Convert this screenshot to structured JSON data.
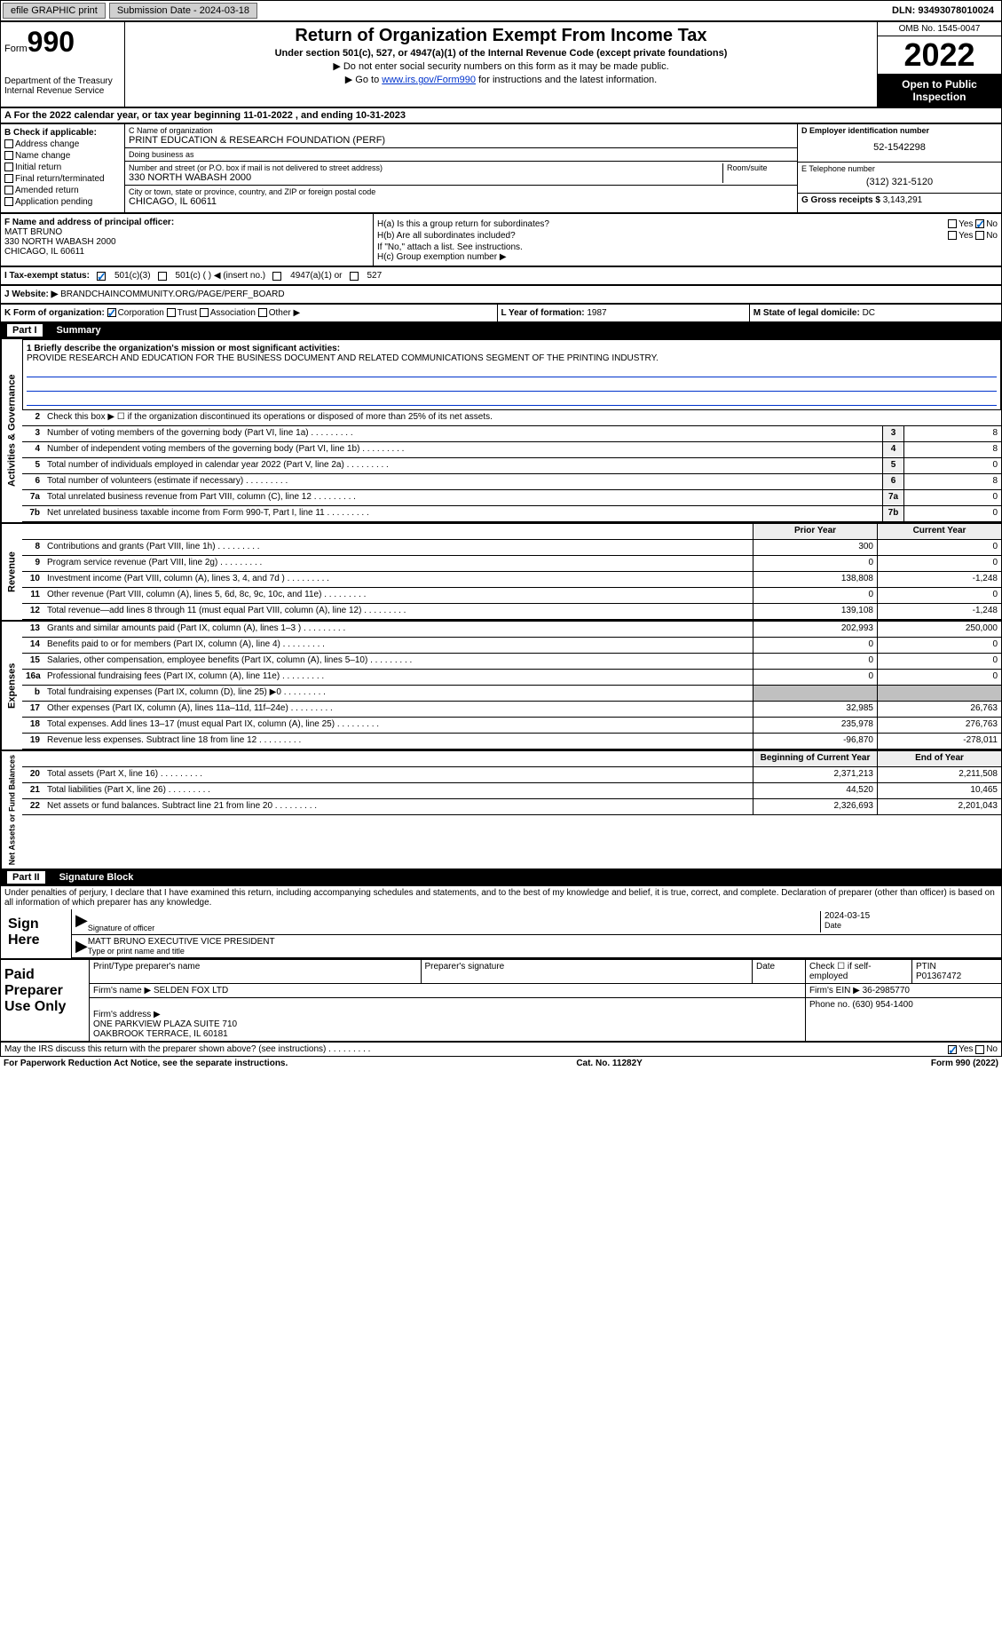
{
  "topbar": {
    "efile": "efile GRAPHIC print",
    "submission_label": "Submission Date - 2024-03-18",
    "dln": "DLN: 93493078010024"
  },
  "header": {
    "form_prefix": "Form",
    "form_number": "990",
    "dept": "Department of the Treasury\nInternal Revenue Service",
    "title": "Return of Organization Exempt From Income Tax",
    "subtitle": "Under section 501(c), 527, or 4947(a)(1) of the Internal Revenue Code (except private foundations)",
    "instr1": "▶ Do not enter social security numbers on this form as it may be made public.",
    "instr2_pre": "▶ Go to ",
    "instr2_link": "www.irs.gov/Form990",
    "instr2_post": " for instructions and the latest information.",
    "omb": "OMB No. 1545-0047",
    "year": "2022",
    "open": "Open to Public Inspection"
  },
  "lineA": "A For the 2022 calendar year, or tax year beginning 11-01-2022    , and ending 10-31-2023",
  "colB": {
    "header": "B Check if applicable:",
    "opts": [
      "Address change",
      "Name change",
      "Initial return",
      "Final return/terminated",
      "Amended return",
      "Application pending"
    ]
  },
  "colC": {
    "name_label": "C Name of organization",
    "name_val": "PRINT EDUCATION & RESEARCH FOUNDATION (PERF)",
    "dba_label": "Doing business as",
    "dba_val": "",
    "addr_label": "Number and street (or P.O. box if mail is not delivered to street address)",
    "room_label": "Room/suite",
    "addr_val": "330 NORTH WABASH 2000",
    "city_label": "City or town, state or province, country, and ZIP or foreign postal code",
    "city_val": "CHICAGO, IL  60611"
  },
  "colD": {
    "ein_label": "D Employer identification number",
    "ein_val": "52-1542298",
    "tel_label": "E Telephone number",
    "tel_val": "(312) 321-5120",
    "gross_label": "G Gross receipts $",
    "gross_val": "3,143,291"
  },
  "colF": {
    "label": "F Name and address of principal officer:",
    "name": "MATT BRUNO",
    "addr1": "330 NORTH WABASH 2000",
    "addr2": "CHICAGO, IL  60611"
  },
  "colH": {
    "ha": "H(a)  Is this a group return for subordinates?",
    "hb": "H(b)  Are all subordinates included?",
    "hb_note": "If \"No,\" attach a list. See instructions.",
    "hc": "H(c)  Group exemption number ▶",
    "yes": "Yes",
    "no": "No"
  },
  "rowI": {
    "label": "I   Tax-exempt status:",
    "opt1": "501(c)(3)",
    "opt2": "501(c) (   ) ◀ (insert no.)",
    "opt3": "4947(a)(1) or",
    "opt4": "527"
  },
  "rowJ": {
    "label": "J   Website: ▶",
    "val": "BRANDCHAINCOMMUNITY.ORG/PAGE/PERF_BOARD"
  },
  "rowK": {
    "label": "K Form of organization:",
    "corp": "Corporation",
    "trust": "Trust",
    "assoc": "Association",
    "other": "Other ▶",
    "L_label": "L Year of formation:",
    "L_val": "1987",
    "M_label": "M State of legal domicile:",
    "M_val": "DC"
  },
  "part1": {
    "part": "Part I",
    "title": "Summary",
    "line1_label": "1  Briefly describe the organization's mission or most significant activities:",
    "line1_val": "PROVIDE RESEARCH AND EDUCATION FOR THE BUSINESS DOCUMENT AND RELATED COMMUNICATIONS SEGMENT OF THE PRINTING INDUSTRY.",
    "line2": "Check this box ▶ ☐ if the organization discontinued its operations or disposed of more than 25% of its net assets.",
    "gov": [
      {
        "n": "3",
        "d": "Number of voting members of the governing body (Part VI, line 1a)",
        "v": "8"
      },
      {
        "n": "4",
        "d": "Number of independent voting members of the governing body (Part VI, line 1b)",
        "v": "8"
      },
      {
        "n": "5",
        "d": "Total number of individuals employed in calendar year 2022 (Part V, line 2a)",
        "v": "0"
      },
      {
        "n": "6",
        "d": "Total number of volunteers (estimate if necessary)",
        "v": "8"
      },
      {
        "n": "7a",
        "d": "Total unrelated business revenue from Part VIII, column (C), line 12",
        "v": "0"
      },
      {
        "n": "7b",
        "d": "Net unrelated business taxable income from Form 990-T, Part I, line 11",
        "v": "0"
      }
    ],
    "col_prior": "Prior Year",
    "col_curr": "Current Year",
    "revenue": [
      {
        "n": "8",
        "d": "Contributions and grants (Part VIII, line 1h)",
        "p": "300",
        "c": "0"
      },
      {
        "n": "9",
        "d": "Program service revenue (Part VIII, line 2g)",
        "p": "0",
        "c": "0"
      },
      {
        "n": "10",
        "d": "Investment income (Part VIII, column (A), lines 3, 4, and 7d )",
        "p": "138,808",
        "c": "-1,248"
      },
      {
        "n": "11",
        "d": "Other revenue (Part VIII, column (A), lines 5, 6d, 8c, 9c, 10c, and 11e)",
        "p": "0",
        "c": "0"
      },
      {
        "n": "12",
        "d": "Total revenue—add lines 8 through 11 (must equal Part VIII, column (A), line 12)",
        "p": "139,108",
        "c": "-1,248"
      }
    ],
    "expenses": [
      {
        "n": "13",
        "d": "Grants and similar amounts paid (Part IX, column (A), lines 1–3 )",
        "p": "202,993",
        "c": "250,000"
      },
      {
        "n": "14",
        "d": "Benefits paid to or for members (Part IX, column (A), line 4)",
        "p": "0",
        "c": "0"
      },
      {
        "n": "15",
        "d": "Salaries, other compensation, employee benefits (Part IX, column (A), lines 5–10)",
        "p": "0",
        "c": "0"
      },
      {
        "n": "16a",
        "d": "Professional fundraising fees (Part IX, column (A), line 11e)",
        "p": "0",
        "c": "0"
      },
      {
        "n": "b",
        "d": "Total fundraising expenses (Part IX, column (D), line 25) ▶0",
        "p": "",
        "c": "",
        "shaded": true
      },
      {
        "n": "17",
        "d": "Other expenses (Part IX, column (A), lines 11a–11d, 11f–24e)",
        "p": "32,985",
        "c": "26,763"
      },
      {
        "n": "18",
        "d": "Total expenses. Add lines 13–17 (must equal Part IX, column (A), line 25)",
        "p": "235,978",
        "c": "276,763"
      },
      {
        "n": "19",
        "d": "Revenue less expenses. Subtract line 18 from line 12",
        "p": "-96,870",
        "c": "-278,011"
      }
    ],
    "col_begin": "Beginning of Current Year",
    "col_end": "End of Year",
    "netassets": [
      {
        "n": "20",
        "d": "Total assets (Part X, line 16)",
        "p": "2,371,213",
        "c": "2,211,508"
      },
      {
        "n": "21",
        "d": "Total liabilities (Part X, line 26)",
        "p": "44,520",
        "c": "10,465"
      },
      {
        "n": "22",
        "d": "Net assets or fund balances. Subtract line 21 from line 20",
        "p": "2,326,693",
        "c": "2,201,043"
      }
    ],
    "vert_gov": "Activities & Governance",
    "vert_rev": "Revenue",
    "vert_exp": "Expenses",
    "vert_net": "Net Assets or Fund Balances"
  },
  "part2": {
    "part": "Part II",
    "title": "Signature Block",
    "declaration": "Under penalties of perjury, I declare that I have examined this return, including accompanying schedules and statements, and to the best of my knowledge and belief, it is true, correct, and complete. Declaration of preparer (other than officer) is based on all information of which preparer has any knowledge.",
    "sign_here": "Sign Here",
    "sig_officer": "Signature of officer",
    "sig_date_label": "Date",
    "sig_date": "2024-03-15",
    "officer_name": "MATT BRUNO  EXECUTIVE VICE PRESIDENT",
    "type_name": "Type or print name and title",
    "paid_label": "Paid Preparer Use Only",
    "prep_name_label": "Print/Type preparer's name",
    "prep_sig_label": "Preparer's signature",
    "date_label": "Date",
    "self_emp": "Check ☐ if self-employed",
    "ptin_label": "PTIN",
    "ptin": "P01367472",
    "firm_name_label": "Firm's name   ▶",
    "firm_name": "SELDEN FOX LTD",
    "firm_ein_label": "Firm's EIN ▶",
    "firm_ein": "36-2985770",
    "firm_addr_label": "Firm's address ▶",
    "firm_addr": "ONE PARKVIEW PLAZA SUITE 710\nOAKBROOK TERRACE, IL  60181",
    "phone_label": "Phone no.",
    "phone": "(630) 954-1400",
    "may_irs": "May the IRS discuss this return with the preparer shown above? (see instructions)",
    "yes": "Yes",
    "no": "No"
  },
  "footer": {
    "paperwork": "For Paperwork Reduction Act Notice, see the separate instructions.",
    "cat": "Cat. No. 11282Y",
    "form": "Form 990 (2022)"
  }
}
